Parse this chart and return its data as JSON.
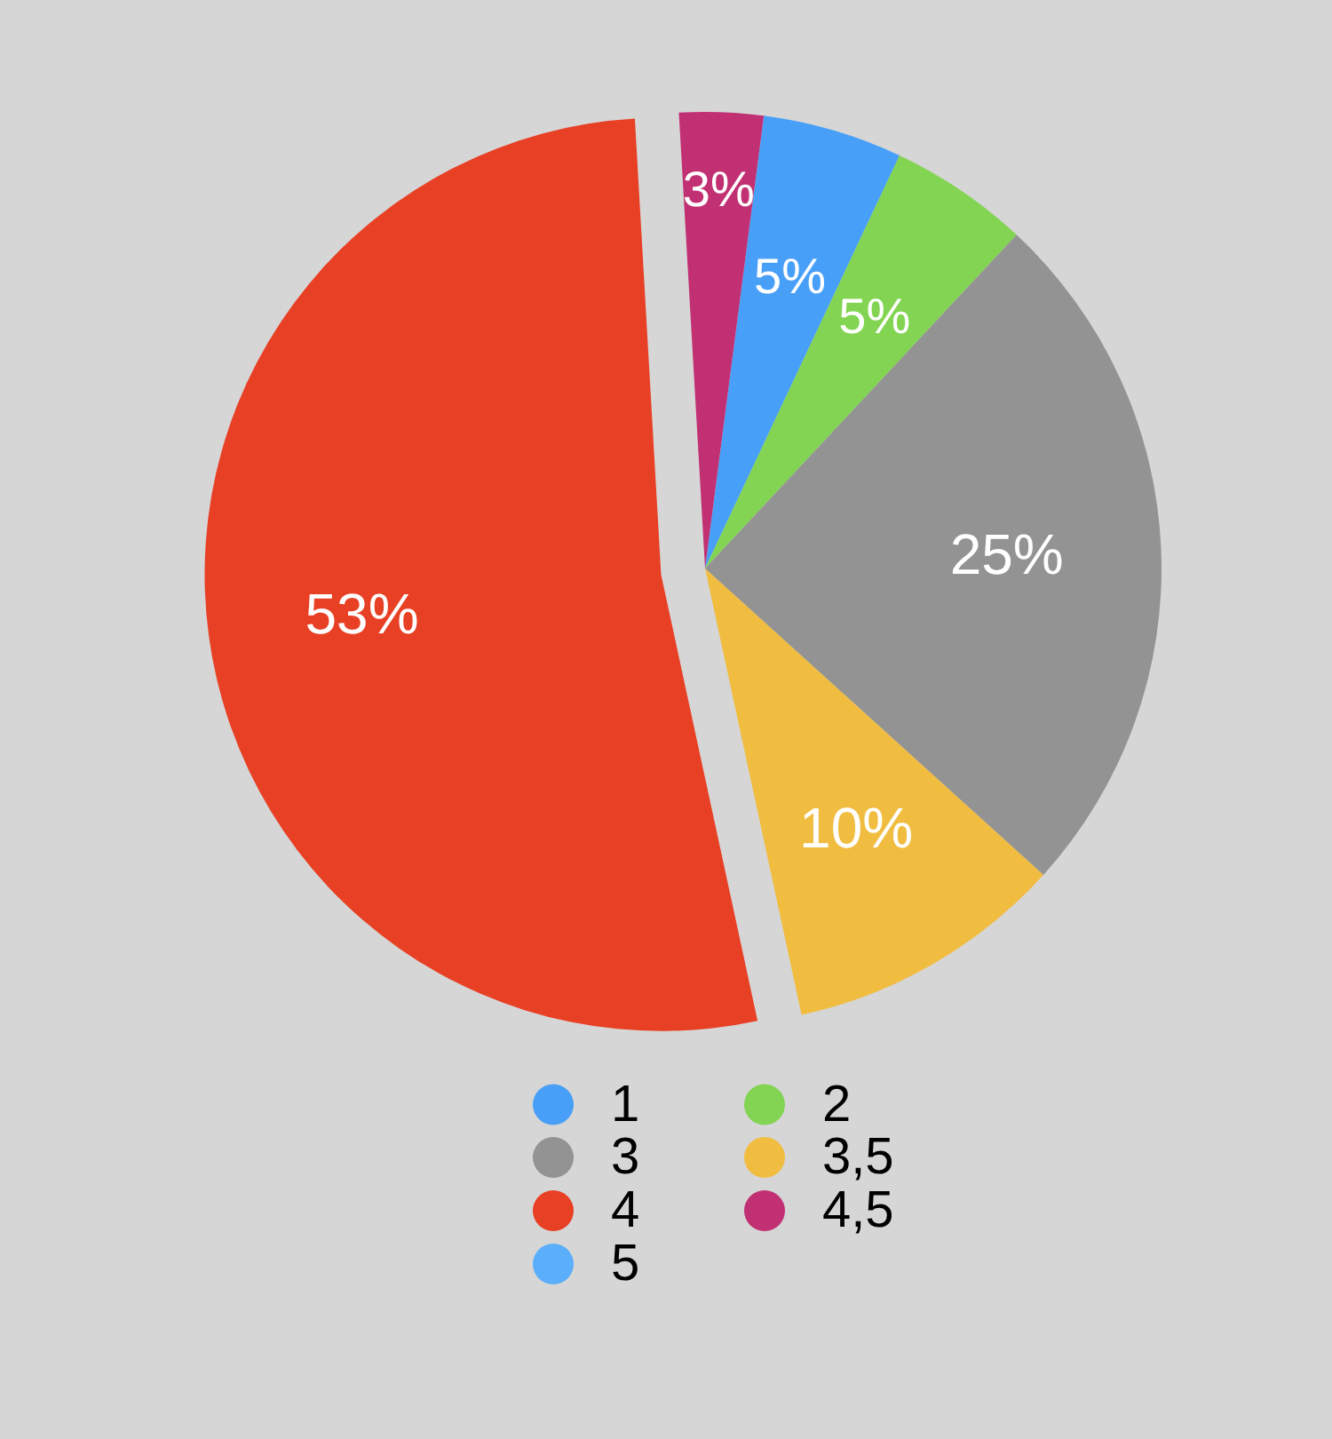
{
  "chart_data": {
    "type": "pie",
    "categories": [
      "1",
      "2",
      "3",
      "3,5",
      "4",
      "4,5",
      "5"
    ],
    "values": [
      5,
      5,
      25,
      10,
      53,
      3,
      0
    ],
    "colors": [
      "#489ff8",
      "#82d452",
      "#939393",
      "#f0bd41",
      "#e84025",
      "#c13073",
      "#5aaefa"
    ],
    "value_labels": [
      "5%",
      "5%",
      "25%",
      "10%",
      "53%",
      "3%",
      null
    ],
    "legend": "bottom"
  }
}
